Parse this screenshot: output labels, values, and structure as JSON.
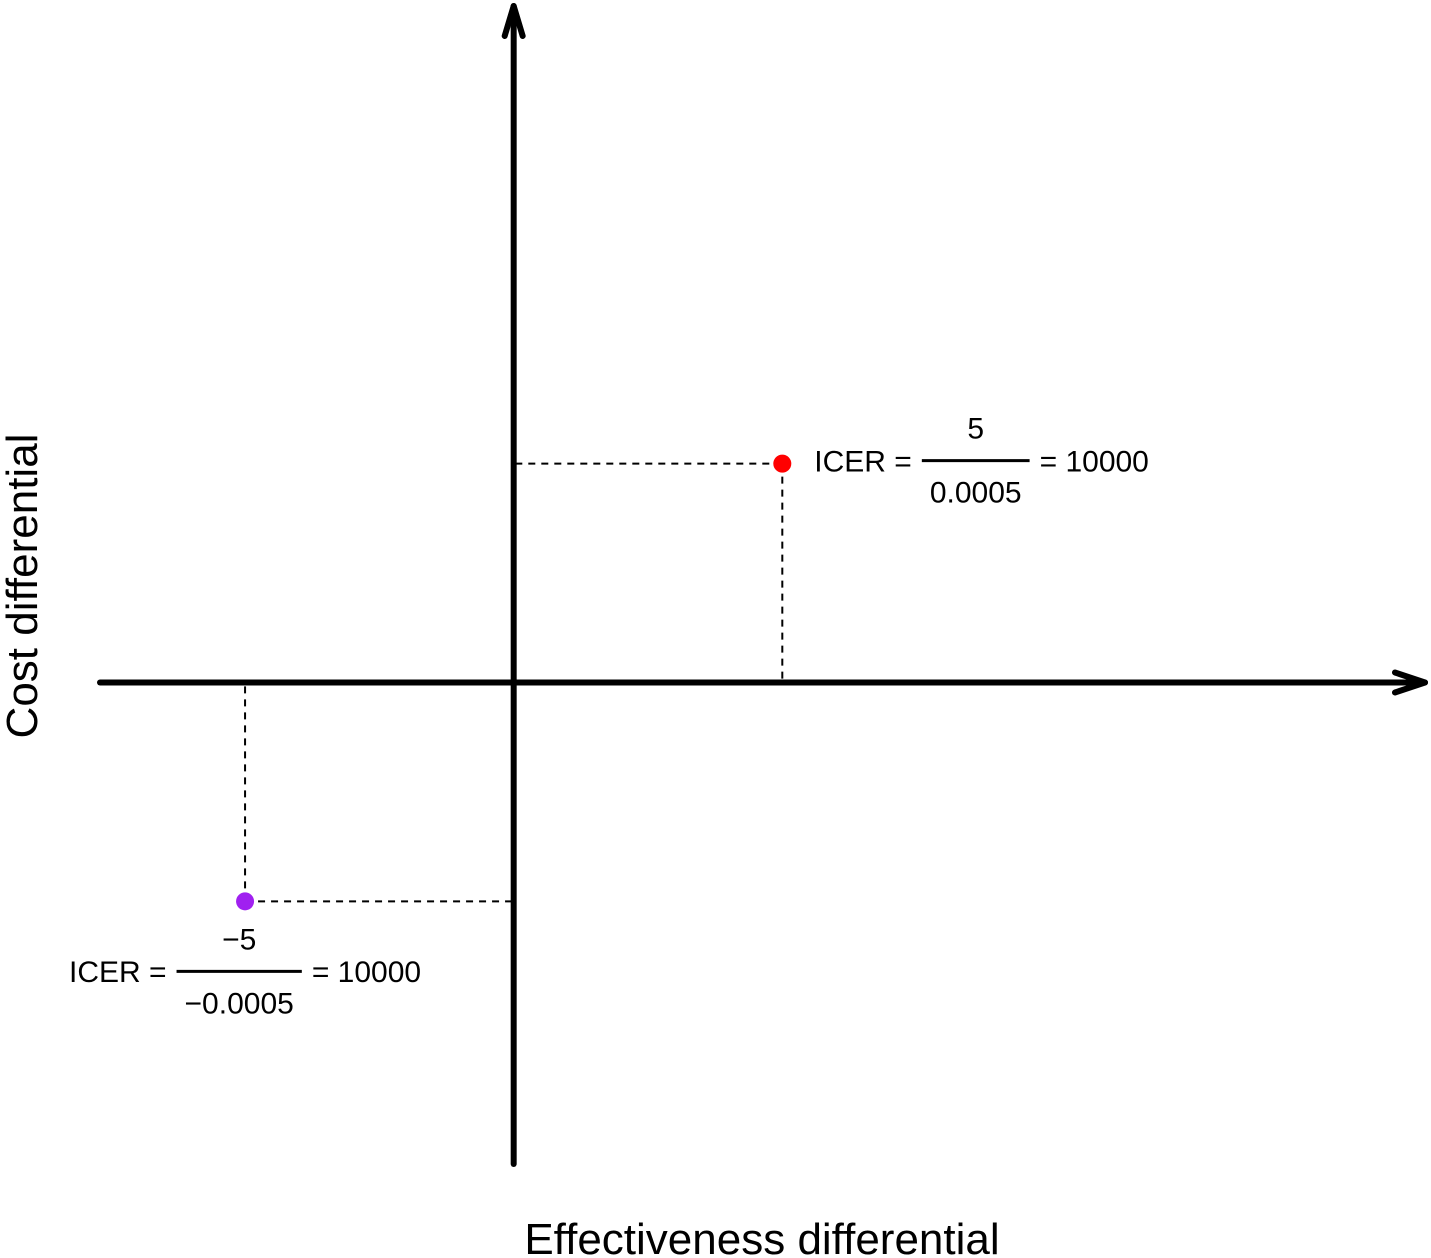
{
  "chart_data": {
    "type": "scatter",
    "title": "",
    "xlabel": "Effectiveness differential",
    "ylabel": "Cost differential",
    "xlim": [
      -0.00077,
      0.0017
    ],
    "ylim": [
      -11,
      15.5
    ],
    "grid": false,
    "legend": "none",
    "points": [
      {
        "x": 0.0005,
        "y": 5,
        "color": "#ff0000",
        "annotation": {
          "prefix": "ICER =",
          "numerator": "5",
          "denominator": "0.0005",
          "suffix": "= 10000",
          "side": "right"
        }
      },
      {
        "x": -0.0005,
        "y": -5,
        "color": "#a020f0",
        "annotation": {
          "prefix": "ICER =",
          "numerator": "−5",
          "denominator": "−0.0005",
          "suffix": "= 10000",
          "side": "below-left"
        }
      }
    ]
  }
}
